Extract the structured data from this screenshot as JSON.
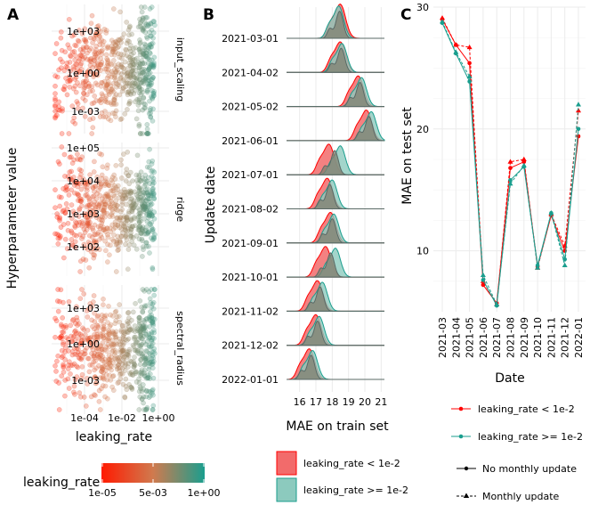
{
  "panel_labels": [
    "A",
    "B",
    "C"
  ],
  "chart_data": [
    {
      "type": "scatter",
      "panel": "A",
      "xlabel": "leaking_rate",
      "ylabel": "Hyperparameter value",
      "x_ticks": [
        "1e-04",
        "1e-02",
        "1e+00"
      ],
      "x_scale": "log",
      "facets": [
        {
          "name": "input_scaling",
          "y_ticks": [
            "1e+03",
            "1e+00",
            "1e-03"
          ]
        },
        {
          "name": "ridge",
          "y_ticks": [
            "1e+05",
            "1e+04",
            "1e+03",
            "1e+02"
          ]
        },
        {
          "name": "spectral_radius",
          "y_ticks": [
            "1e+03",
            "1e+00",
            "1e-03"
          ]
        }
      ],
      "color_scale": {
        "title": "leaking_rate",
        "low": "#ff1a00",
        "high": "#1a9e8e",
        "ticks": [
          "1e-05",
          "5e-03",
          "1e+00"
        ]
      },
      "grid": true
    },
    {
      "type": "area",
      "panel": "B",
      "subtype": "ridgeline",
      "xlabel": "MAE on train set",
      "ylabel": "Update date",
      "x_ticks": [
        "16",
        "17",
        "18",
        "19",
        "20",
        "21"
      ],
      "xlim": [
        15.2,
        21.2
      ],
      "dates": [
        "2021-03-01",
        "2021-04-02",
        "2021-05-02",
        "2021-06-01",
        "2021-07-01",
        "2021-08-02",
        "2021-09-01",
        "2021-10-01",
        "2021-11-02",
        "2021-12-02",
        "2022-01-01"
      ],
      "modes_low": [
        18.5,
        18.5,
        19.6,
        20.1,
        17.8,
        17.7,
        17.9,
        17.6,
        17.1,
        17.0,
        16.6
      ],
      "modes_high": [
        18.4,
        18.6,
        19.8,
        20.4,
        18.5,
        18.0,
        18.1,
        18.2,
        17.4,
        17.2,
        16.8
      ],
      "legend": [
        {
          "label": "leaking_rate < 1e-2",
          "fill": "#f26b6b",
          "stroke": "#ff0000"
        },
        {
          "label": "leaking_rate >= 1e-2",
          "fill": "#8ccabe",
          "stroke": "#1a9e8e"
        }
      ],
      "grid": true
    },
    {
      "type": "line",
      "panel": "C",
      "xlabel": "Date",
      "ylabel": "MAE on test set",
      "ylim": [
        5,
        30
      ],
      "y_ticks": [
        10,
        20,
        30
      ],
      "categories": [
        "2021-03",
        "2021-04",
        "2021-05",
        "2021-06",
        "2021-07",
        "2021-08",
        "2021-09",
        "2021-10",
        "2021-11",
        "2021-12",
        "2022-01"
      ],
      "series": [
        {
          "name": "leaking_rate < 1e-2",
          "update": "No monthly update",
          "color": "#ff0000",
          "values": [
            29.0,
            26.9,
            25.4,
            7.2,
            5.7,
            16.8,
            17.3,
            8.7,
            12.9,
            10.0,
            19.4
          ]
        },
        {
          "name": "leaking_rate < 1e-2",
          "update": "Monthly update",
          "color": "#ff0000",
          "values": [
            29.1,
            26.9,
            26.7,
            7.5,
            5.6,
            17.3,
            17.5,
            8.6,
            13.0,
            10.4,
            21.5
          ]
        },
        {
          "name": "leaking_rate >= 1e-2",
          "update": "No monthly update",
          "color": "#1a9e8e",
          "values": [
            28.7,
            26.2,
            23.9,
            7.6,
            5.5,
            15.8,
            16.9,
            8.8,
            13.1,
            9.3,
            20.0
          ]
        },
        {
          "name": "leaking_rate >= 1e-2",
          "update": "Monthly update",
          "color": "#1a9e8e",
          "values": [
            28.8,
            26.3,
            24.3,
            8.0,
            5.6,
            15.5,
            17.0,
            8.6,
            13.1,
            8.8,
            22.0
          ]
        }
      ],
      "legend_color": [
        {
          "label": "leaking_rate < 1e-2",
          "color": "#ff0000"
        },
        {
          "label": "leaking_rate >= 1e-2",
          "color": "#1a9e8e"
        }
      ],
      "legend_linetype": [
        {
          "label": "No monthly update",
          "dash": "solid"
        },
        {
          "label": "Monthly update",
          "dash": "dashed"
        }
      ],
      "grid": true
    }
  ]
}
